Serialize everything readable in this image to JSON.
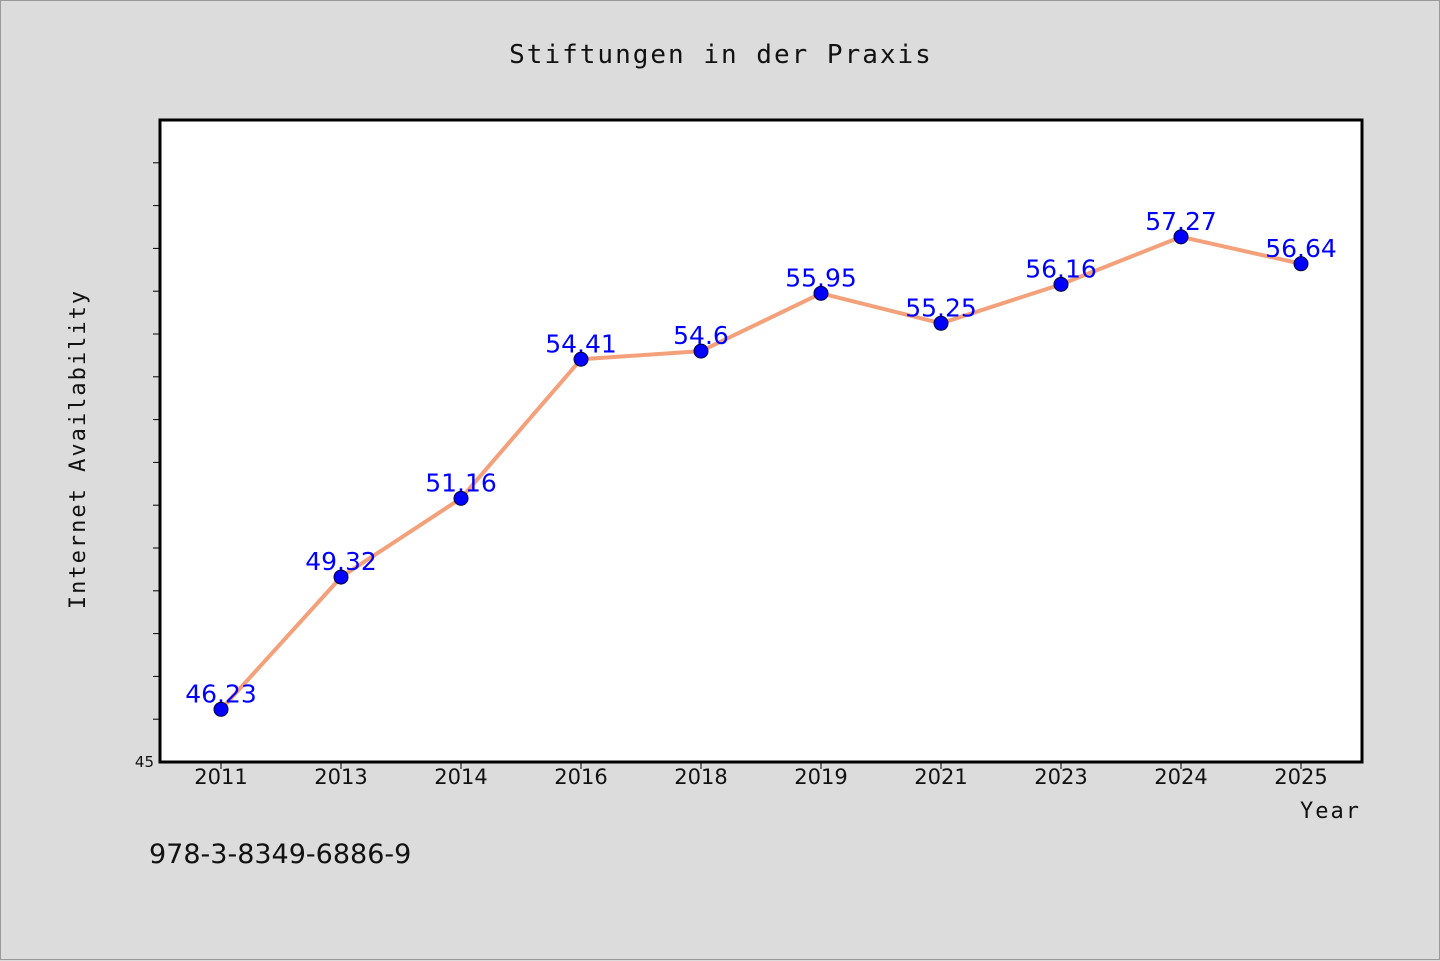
{
  "chart_data": {
    "type": "line",
    "title": "Stiftungen in der Praxis",
    "xlabel": "Year",
    "ylabel": "Internet Availability",
    "categories": [
      "2011",
      "2013",
      "2014",
      "2016",
      "2018",
      "2019",
      "2021",
      "2023",
      "2024",
      "2025"
    ],
    "series": [
      {
        "values": [
          46.23,
          49.32,
          51.16,
          54.41,
          54.6,
          55.95,
          55.25,
          56.16,
          57.27,
          56.64
        ],
        "value_labels": [
          "46.23",
          "49.32",
          "51.16",
          "54.41",
          "54.6",
          "55.95",
          "55.25",
          "56.16",
          "57.27",
          "56.64"
        ],
        "line_color": "#f4a07a",
        "marker_color": "#0000ff"
      }
    ],
    "ylim": [
      45,
      60
    ],
    "yticks_labeled": [
      "45"
    ],
    "grid": false,
    "legend": "none"
  },
  "footer": {
    "isbn": "978-3-8349-6886-9"
  },
  "colors": {
    "background": "#dcdcdc",
    "plot_background": "#ffffff",
    "data_label": "#0000ff"
  }
}
